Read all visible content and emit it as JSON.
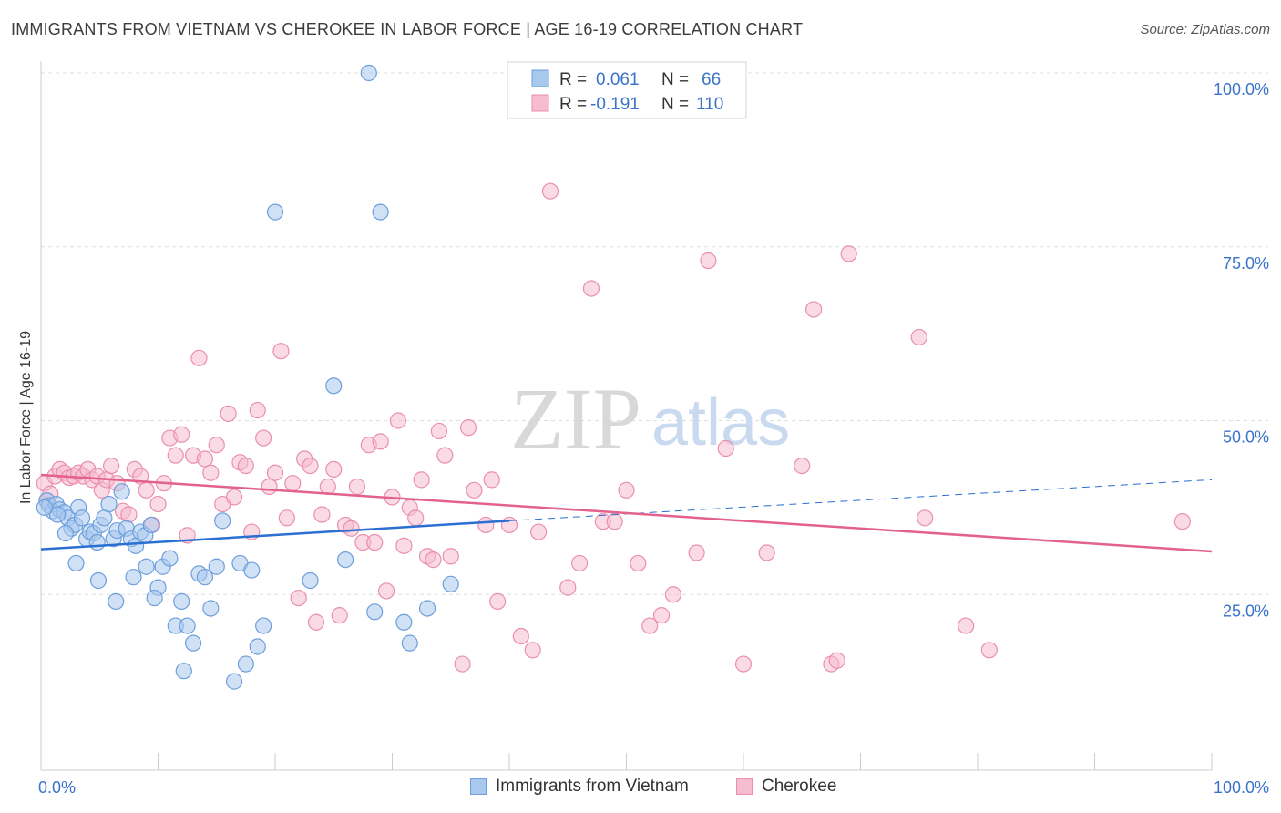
{
  "title": "IMMIGRANTS FROM VIETNAM VS CHEROKEE IN LABOR FORCE | AGE 16-19 CORRELATION CHART",
  "source": "Source: ZipAtlas.com",
  "watermark": {
    "zip": "ZIP",
    "atlas": "atlas"
  },
  "colors": {
    "vietnam_fill": "#a9c8ee",
    "vietnam_stroke": "#6d9fdc",
    "vietnam_line": "#2a6fd1",
    "cherokee_fill": "#f6bcd0",
    "cherokee_stroke": "#ea8fae",
    "cherokee_line": "#e2628d",
    "accent_text": "#3a73c9",
    "grid": "#dddddd"
  },
  "legend_top": {
    "rows": [
      {
        "r_label": "R =",
        "r_value": "0.061",
        "n_label": "N =",
        "n_value": "66"
      },
      {
        "r_label": "R =",
        "r_value": "-0.191",
        "n_label": "N =",
        "n_value": "110"
      }
    ]
  },
  "legend_bottom": [
    {
      "label": "Immigrants from Vietnam"
    },
    {
      "label": "Cherokee"
    }
  ],
  "chart_data": {
    "type": "scatter",
    "ylabel": "In Labor Force | Age 16-19",
    "xlim": [
      0,
      100
    ],
    "ylim": [
      0,
      100
    ],
    "x_tick_labels": {
      "left": "0.0%",
      "right": "100.0%"
    },
    "y_ticks": [
      {
        "value": 100,
        "label": "100.0%"
      },
      {
        "value": 75,
        "label": "75.0%"
      },
      {
        "value": 50,
        "label": "50.0%"
      },
      {
        "value": 25,
        "label": "25.0%"
      }
    ],
    "series": [
      {
        "name": "Immigrants from Vietnam",
        "r": 0.061,
        "n": 66,
        "trend": {
          "x0": 0,
          "y0": 31.5,
          "x1": 40,
          "y1": 35.6,
          "dashed_to_x": 100,
          "dashed_to_y": 41.5
        },
        "points": [
          [
            0.5,
            38.5
          ],
          [
            0.7,
            37.8
          ],
          [
            1.0,
            37.0
          ],
          [
            1.3,
            38.0
          ],
          [
            1.6,
            37.2
          ],
          [
            2.0,
            36.8
          ],
          [
            2.3,
            36.0
          ],
          [
            2.6,
            34.5
          ],
          [
            2.9,
            35.0
          ],
          [
            3.2,
            37.5
          ],
          [
            3.5,
            36.0
          ],
          [
            3.9,
            33.0
          ],
          [
            4.2,
            34.0
          ],
          [
            4.5,
            33.8
          ],
          [
            4.8,
            32.5
          ],
          [
            5.1,
            35.0
          ],
          [
            5.4,
            36.0
          ],
          [
            5.8,
            38.0
          ],
          [
            6.2,
            33.0
          ],
          [
            6.5,
            34.2
          ],
          [
            6.9,
            39.8
          ],
          [
            7.3,
            34.5
          ],
          [
            7.7,
            33.0
          ],
          [
            8.1,
            32.0
          ],
          [
            8.5,
            34.0
          ],
          [
            8.9,
            33.5
          ],
          [
            9.0,
            29.0
          ],
          [
            9.4,
            35.0
          ],
          [
            10.0,
            26.0
          ],
          [
            10.4,
            29.0
          ],
          [
            11.0,
            30.2
          ],
          [
            11.5,
            20.5
          ],
          [
            12.0,
            24.0
          ],
          [
            12.5,
            20.5
          ],
          [
            13.0,
            18.0
          ],
          [
            13.5,
            28.0
          ],
          [
            14.0,
            27.5
          ],
          [
            14.5,
            23.0
          ],
          [
            15.0,
            29.0
          ],
          [
            15.5,
            35.6
          ],
          [
            16.5,
            12.5
          ],
          [
            17.0,
            29.5
          ],
          [
            17.5,
            15.0
          ],
          [
            18.0,
            28.5
          ],
          [
            18.5,
            17.5
          ],
          [
            19.0,
            20.5
          ],
          [
            9.7,
            24.5
          ],
          [
            20.0,
            80.0
          ],
          [
            25.0,
            55.0
          ],
          [
            28.0,
            100.0
          ],
          [
            29.0,
            80.0
          ],
          [
            26.0,
            30.0
          ],
          [
            23.0,
            27.0
          ],
          [
            31.0,
            21.0
          ],
          [
            31.5,
            18.0
          ],
          [
            33.0,
            23.0
          ],
          [
            35.0,
            26.5
          ],
          [
            28.5,
            22.5
          ],
          [
            12.2,
            14.0
          ],
          [
            6.4,
            24.0
          ],
          [
            4.9,
            27.0
          ],
          [
            3.0,
            29.5
          ],
          [
            7.9,
            27.5
          ],
          [
            2.1,
            33.8
          ],
          [
            1.4,
            36.5
          ],
          [
            0.3,
            37.5
          ]
        ]
      },
      {
        "name": "Cherokee",
        "r": -0.191,
        "n": 110,
        "trend": {
          "x0": 0,
          "y0": 42.2,
          "x1": 100,
          "y1": 31.2
        },
        "points": [
          [
            0.3,
            41.0
          ],
          [
            0.5,
            38.5
          ],
          [
            0.8,
            39.5
          ],
          [
            1.2,
            42.0
          ],
          [
            1.6,
            43.0
          ],
          [
            2.0,
            42.5
          ],
          [
            2.4,
            41.8
          ],
          [
            2.8,
            42.0
          ],
          [
            3.2,
            42.5
          ],
          [
            3.6,
            42.0
          ],
          [
            4.0,
            43.0
          ],
          [
            4.4,
            41.5
          ],
          [
            4.8,
            42.0
          ],
          [
            5.2,
            40.0
          ],
          [
            5.6,
            41.5
          ],
          [
            6.0,
            43.5
          ],
          [
            6.5,
            41.0
          ],
          [
            7.0,
            37.0
          ],
          [
            7.5,
            36.5
          ],
          [
            8.0,
            43.0
          ],
          [
            8.5,
            42.0
          ],
          [
            9.0,
            40.0
          ],
          [
            9.5,
            35.0
          ],
          [
            10.0,
            38.0
          ],
          [
            10.5,
            41.0
          ],
          [
            11.0,
            47.5
          ],
          [
            11.5,
            45.0
          ],
          [
            12.0,
            48.0
          ],
          [
            12.5,
            33.5
          ],
          [
            13.0,
            45.0
          ],
          [
            13.5,
            59.0
          ],
          [
            14.0,
            44.5
          ],
          [
            14.5,
            42.5
          ],
          [
            15.0,
            46.5
          ],
          [
            15.5,
            38.0
          ],
          [
            16.0,
            51.0
          ],
          [
            16.5,
            39.0
          ],
          [
            17.0,
            44.0
          ],
          [
            17.5,
            43.5
          ],
          [
            18.0,
            34.0
          ],
          [
            18.5,
            51.5
          ],
          [
            19.0,
            47.5
          ],
          [
            19.5,
            40.5
          ],
          [
            20.0,
            42.5
          ],
          [
            20.5,
            60.0
          ],
          [
            21.0,
            36.0
          ],
          [
            21.5,
            41.0
          ],
          [
            22.0,
            24.5
          ],
          [
            22.5,
            44.5
          ],
          [
            23.0,
            43.5
          ],
          [
            23.5,
            21.0
          ],
          [
            24.0,
            36.5
          ],
          [
            24.5,
            40.5
          ],
          [
            25.0,
            43.0
          ],
          [
            25.5,
            22.0
          ],
          [
            26.0,
            35.0
          ],
          [
            26.5,
            34.5
          ],
          [
            27.0,
            40.5
          ],
          [
            27.5,
            32.5
          ],
          [
            28.0,
            46.5
          ],
          [
            28.5,
            32.5
          ],
          [
            29.0,
            47.0
          ],
          [
            29.5,
            25.5
          ],
          [
            30.0,
            39.0
          ],
          [
            30.5,
            50.0
          ],
          [
            31.0,
            32.0
          ],
          [
            31.5,
            37.5
          ],
          [
            32.0,
            36.0
          ],
          [
            32.5,
            41.5
          ],
          [
            33.0,
            30.5
          ],
          [
            33.5,
            30.0
          ],
          [
            34.0,
            48.5
          ],
          [
            34.5,
            45.0
          ],
          [
            35.0,
            30.5
          ],
          [
            36.0,
            15.0
          ],
          [
            36.5,
            49.0
          ],
          [
            37.0,
            40.0
          ],
          [
            38.0,
            35.0
          ],
          [
            38.5,
            41.5
          ],
          [
            39.0,
            24.0
          ],
          [
            40.0,
            35.0
          ],
          [
            41.0,
            19.0
          ],
          [
            42.0,
            17.0
          ],
          [
            42.5,
            34.0
          ],
          [
            43.5,
            83.0
          ],
          [
            45.0,
            26.0
          ],
          [
            46.0,
            29.5
          ],
          [
            47.0,
            69.0
          ],
          [
            48.0,
            35.5
          ],
          [
            49.0,
            35.5
          ],
          [
            50.0,
            40.0
          ],
          [
            51.0,
            29.5
          ],
          [
            52.0,
            20.5
          ],
          [
            53.0,
            22.0
          ],
          [
            54.0,
            25.0
          ],
          [
            56.0,
            31.0
          ],
          [
            57.0,
            73.0
          ],
          [
            58.5,
            46.0
          ],
          [
            60.0,
            15.0
          ],
          [
            62.0,
            31.0
          ],
          [
            65.0,
            43.5
          ],
          [
            66.0,
            66.0
          ],
          [
            67.5,
            15.0
          ],
          [
            68.0,
            15.5
          ],
          [
            69.0,
            74.0
          ],
          [
            75.0,
            62.0
          ],
          [
            75.5,
            36.0
          ],
          [
            79.0,
            20.5
          ],
          [
            81.0,
            17.0
          ],
          [
            97.5,
            35.5
          ]
        ]
      }
    ]
  }
}
